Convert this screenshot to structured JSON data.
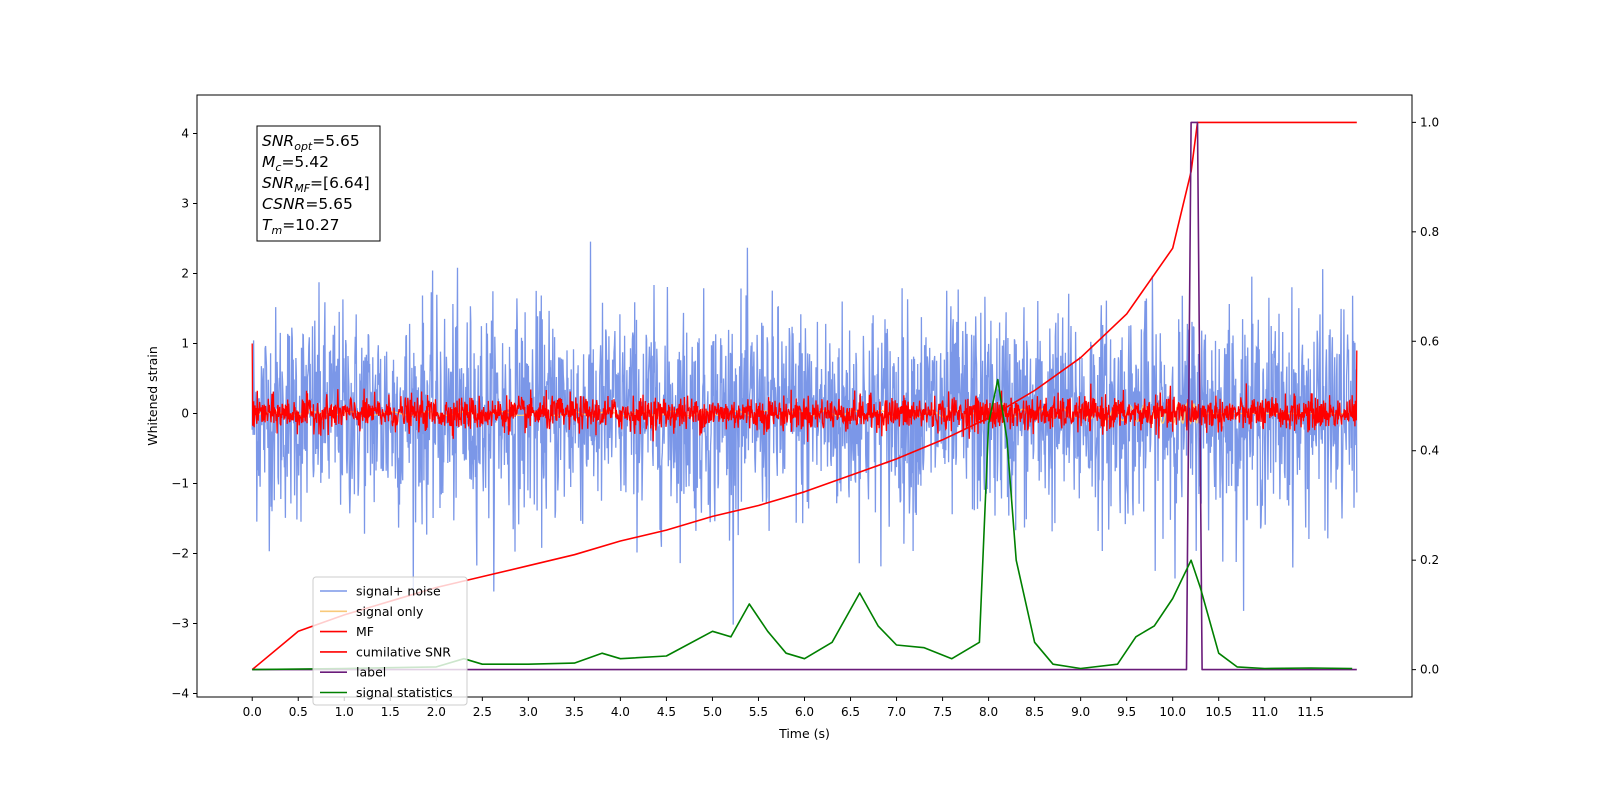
{
  "chart_data": {
    "type": "line",
    "xlabel": "Time (s)",
    "ylabel": "Whitened strain",
    "xlim": [
      -0.6,
      12.6
    ],
    "ylim": [
      -4.05,
      4.55
    ],
    "y2lim": [
      -0.05,
      1.05
    ],
    "x_ticks": [
      "0.0",
      "0.5",
      "1.0",
      "1.5",
      "2.0",
      "2.5",
      "3.0",
      "3.5",
      "4.0",
      "4.5",
      "5.0",
      "5.5",
      "6.0",
      "6.5",
      "7.0",
      "7.5",
      "8.0",
      "8.5",
      "9.0",
      "9.5",
      "10.0",
      "10.5",
      "11.0",
      "11.5"
    ],
    "y_ticks": [
      "4",
      "3",
      "2",
      "1",
      "0",
      "−1",
      "−2",
      "−3",
      "−4"
    ],
    "y2_ticks": [
      "1.0",
      "0.8",
      "0.6",
      "0.4",
      "0.2",
      "0.0"
    ],
    "grid": false,
    "legend_position": "lower-left",
    "annotation": [
      {
        "base": "SNR",
        "sub": "opt",
        "value": "=5.65"
      },
      {
        "base": "M",
        "sub": "c",
        "value": "=5.42"
      },
      {
        "base": "SNR",
        "sub": "MF",
        "value": "=[6.64]"
      },
      {
        "base": "CSNR",
        "sub": "",
        "value": "=5.65"
      },
      {
        "base": "T",
        "sub": "m",
        "value": "=10.27"
      }
    ],
    "series": [
      {
        "name": "signal+ noise",
        "color": "#7b97e8",
        "axis": "left",
        "description_points": {
          "x": [
            0,
            12
          ],
          "noise_std": 0.75,
          "x_end": 12.0
        }
      },
      {
        "name": "signal only",
        "color": "#f8c97a",
        "axis": "left",
        "chirp": {
          "x_start": 0,
          "x_merger": 10.27,
          "amp_max": 0.35
        }
      },
      {
        "name": "MF",
        "color": "#ff0000",
        "axis": "left",
        "noise_band": {
          "x": [
            0,
            12
          ],
          "std": 0.12
        }
      },
      {
        "name": "cumilative SNR",
        "color": "#ff0000",
        "axis": "right",
        "x": [
          0.0,
          0.5,
          1.0,
          1.5,
          2.0,
          2.5,
          3.0,
          3.5,
          4.0,
          4.5,
          5.0,
          5.5,
          6.0,
          6.5,
          7.0,
          7.5,
          8.0,
          8.5,
          9.0,
          9.5,
          10.0,
          10.2,
          10.27,
          12.0
        ],
        "y": [
          0.0,
          0.07,
          0.1,
          0.125,
          0.15,
          0.17,
          0.19,
          0.21,
          0.235,
          0.255,
          0.28,
          0.3,
          0.325,
          0.355,
          0.385,
          0.42,
          0.46,
          0.51,
          0.57,
          0.65,
          0.77,
          0.91,
          1.0,
          1.0
        ]
      },
      {
        "name": "label",
        "color": "#6a1b7a",
        "axis": "right",
        "x": [
          0.0,
          10.15,
          10.2,
          10.27,
          10.32,
          12.0
        ],
        "y": [
          0.0,
          0.0,
          1.0,
          1.0,
          0.0,
          0.0
        ]
      },
      {
        "name": "signal statistics",
        "color": "#008000",
        "axis": "right",
        "x": [
          0.0,
          1.0,
          2.0,
          2.3,
          2.5,
          3.0,
          3.5,
          3.8,
          4.0,
          4.5,
          5.0,
          5.2,
          5.4,
          5.6,
          5.8,
          6.0,
          6.3,
          6.6,
          6.8,
          7.0,
          7.3,
          7.6,
          7.9,
          8.0,
          8.1,
          8.2,
          8.3,
          8.5,
          8.7,
          9.0,
          9.4,
          9.6,
          9.8,
          10.0,
          10.2,
          10.3,
          10.5,
          10.7,
          11.0,
          11.5,
          11.95
        ],
        "y": [
          0.0,
          0.002,
          0.005,
          0.02,
          0.01,
          0.01,
          0.012,
          0.03,
          0.02,
          0.025,
          0.07,
          0.06,
          0.12,
          0.07,
          0.03,
          0.02,
          0.05,
          0.14,
          0.08,
          0.045,
          0.04,
          0.02,
          0.05,
          0.45,
          0.53,
          0.42,
          0.2,
          0.05,
          0.01,
          0.002,
          0.01,
          0.06,
          0.08,
          0.13,
          0.2,
          0.15,
          0.03,
          0.005,
          0.002,
          0.003,
          0.002
        ]
      }
    ]
  }
}
